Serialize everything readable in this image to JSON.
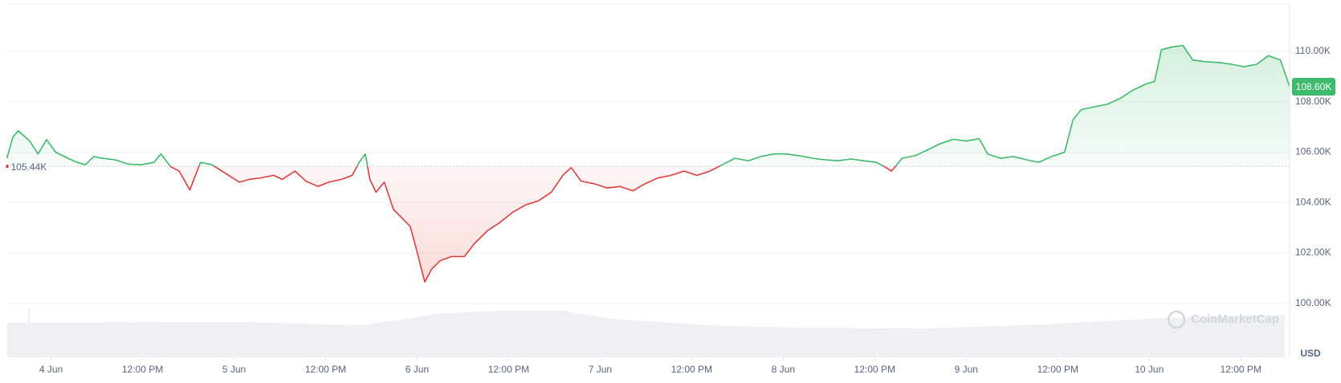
{
  "chart_data": {
    "type": "line",
    "x": [
      -5.8,
      -5.0,
      -4.3,
      -2.8,
      -1.7,
      -0.6,
      0.6,
      2.2,
      3.4,
      4.5,
      5.6,
      6.7,
      8.4,
      10.1,
      11.8,
      13.5,
      14.4,
      15.7,
      16.8,
      18.2,
      19.6,
      21.1,
      22.4,
      23.6,
      24.7,
      26.0,
      27.5,
      29.2,
      30.3,
      32.0,
      33.4,
      35.0,
      36.4,
      38.1,
      39.5,
      40.4,
      41.2,
      41.8,
      42.6,
      43.7,
      44.9,
      46.0,
      47.1,
      48.0,
      49.0,
      49.9,
      51.0,
      52.5,
      54.2,
      55.5,
      57.2,
      58.9,
      60.6,
      62.2,
      63.9,
      65.6,
      67.1,
      68.2,
      69.5,
      71.2,
      72.9,
      74.6,
      76.3,
      77.9,
      79.6,
      81.3,
      83.0,
      84.7,
      86.4,
      88.0,
      89.7,
      91.4,
      93.1,
      94.8,
      96.4,
      98.1,
      99.8,
      101.5,
      103.2,
      104.9,
      106.5,
      108.2,
      109.3,
      110.2,
      111.6,
      113.3,
      115.0,
      116.6,
      118.3,
      120.0,
      121.7,
      122.8,
      124.5,
      126.2,
      127.9,
      129.5,
      131.2,
      132.9,
      134.0,
      135.1,
      136.8,
      138.5,
      140.2,
      141.9,
      143.6,
      144.7,
      145.6,
      146.9,
      148.4,
      149.7,
      151.4,
      153.1,
      154.8,
      156.4,
      158.1,
      159.6,
      161.2,
      162.4
    ],
    "values": [
      105760,
      106600,
      106850,
      106440,
      105930,
      106500,
      106000,
      105760,
      105600,
      105500,
      105830,
      105760,
      105700,
      105530,
      105500,
      105600,
      105930,
      105420,
      105250,
      104500,
      105600,
      105500,
      105250,
      105020,
      104810,
      104920,
      104980,
      105080,
      104920,
      105250,
      104850,
      104640,
      104810,
      104920,
      105080,
      105600,
      105930,
      104920,
      104410,
      104810,
      103730,
      103390,
      103050,
      102030,
      100850,
      101360,
      101690,
      101860,
      101860,
      102370,
      102880,
      103220,
      103630,
      103900,
      104070,
      104410,
      105080,
      105390,
      104850,
      104750,
      104580,
      104640,
      104470,
      104750,
      104980,
      105080,
      105250,
      105080,
      105250,
      105500,
      105760,
      105660,
      105830,
      105930,
      105930,
      105860,
      105760,
      105700,
      105660,
      105730,
      105660,
      105600,
      105420,
      105250,
      105760,
      105860,
      106100,
      106340,
      106510,
      106440,
      106540,
      105930,
      105760,
      105830,
      105700,
      105600,
      105830,
      106000,
      107290,
      107690,
      107800,
      107900,
      108140,
      108470,
      108710,
      108810,
      110070,
      110170,
      110240,
      109660,
      109590,
      109560,
      109490,
      109390,
      109490,
      109830,
      109660,
      108600
    ],
    "up_color": "#3dba6b",
    "down_color": "#e03b3b",
    "baseline": {
      "value": 105440,
      "label": "105.44K"
    },
    "last_price": {
      "value": 108600,
      "label": "108.60K"
    },
    "xlim": [
      -5.8,
      162.4
    ],
    "xticks": [
      {
        "value": 0,
        "label": "4 Jun"
      },
      {
        "value": 12,
        "label": "12:00 PM"
      },
      {
        "value": 24,
        "label": "5 Jun"
      },
      {
        "value": 36,
        "label": "12:00 PM"
      },
      {
        "value": 48,
        "label": "6 Jun"
      },
      {
        "value": 60,
        "label": "12:00 PM"
      },
      {
        "value": 72,
        "label": "7 Jun"
      },
      {
        "value": 84,
        "label": "12:00 PM"
      },
      {
        "value": 96,
        "label": "8 Jun"
      },
      {
        "value": 108,
        "label": "12:00 PM"
      },
      {
        "value": 120,
        "label": "9 Jun"
      },
      {
        "value": 132,
        "label": "12:00 PM"
      },
      {
        "value": 144,
        "label": "10 Jun"
      },
      {
        "value": 156,
        "label": "12:00 PM"
      }
    ],
    "ylim": [
      97860,
      111880
    ],
    "yticks": [
      {
        "value": 100000,
        "label": "100.00K"
      },
      {
        "value": 102000,
        "label": "102.00K"
      },
      {
        "value": 104000,
        "label": "104.00K"
      },
      {
        "value": 106000,
        "label": "106.00K"
      },
      {
        "value": 108000,
        "label": "108.00K"
      },
      {
        "value": 110000,
        "label": "110.00K"
      }
    ],
    "grid": true,
    "currency_label": "USD",
    "watermark": "CoinMarketCap"
  }
}
